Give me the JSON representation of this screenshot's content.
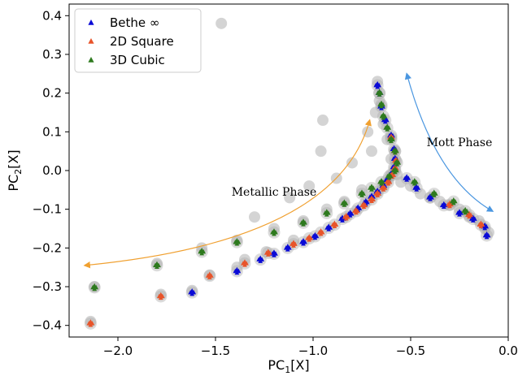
{
  "chart_data": {
    "type": "scatter",
    "xlabel": "PC1[X]",
    "ylabel": "PC2[X]",
    "xlim": [
      -2.25,
      0.0
    ],
    "ylim": [
      -0.43,
      0.43
    ],
    "xticks": [
      -2.0,
      -1.5,
      -1.0,
      -0.5,
      0.0
    ],
    "xtick_labels": [
      "−2.0",
      "−1.5",
      "−1.0",
      "−0.5",
      "0.0"
    ],
    "yticks": [
      -0.4,
      -0.3,
      -0.2,
      -0.1,
      0.0,
      0.1,
      0.2,
      0.3,
      0.4
    ],
    "ytick_labels": [
      "−0.4",
      "−0.3",
      "−0.2",
      "−0.1",
      "0.0",
      "0.1",
      "0.2",
      "0.3",
      "0.4"
    ],
    "grid": false,
    "legend_position": "top-left",
    "series": [
      {
        "name": "Bethe ∞",
        "color": "#0a0ad6",
        "marker": "triangle",
        "points": [
          [
            -1.62,
            -0.315
          ],
          [
            -1.39,
            -0.26
          ],
          [
            -1.27,
            -0.23
          ],
          [
            -1.2,
            -0.215
          ],
          [
            -1.13,
            -0.2
          ],
          [
            -1.05,
            -0.185
          ],
          [
            -0.99,
            -0.17
          ],
          [
            -0.92,
            -0.148
          ],
          [
            -0.85,
            -0.125
          ],
          [
            -0.81,
            -0.112
          ],
          [
            -0.77,
            -0.098
          ],
          [
            -0.73,
            -0.082
          ],
          [
            -0.7,
            -0.068
          ],
          [
            -0.67,
            -0.055
          ],
          [
            -0.64,
            -0.04
          ],
          [
            -0.62,
            -0.025
          ],
          [
            -0.6,
            -0.01
          ],
          [
            -0.585,
            0.008
          ],
          [
            -0.58,
            0.03
          ],
          [
            -0.585,
            0.055
          ],
          [
            -0.6,
            0.09
          ],
          [
            -0.63,
            0.13
          ],
          [
            -0.65,
            0.165
          ],
          [
            -0.66,
            0.2
          ],
          [
            -0.67,
            0.22
          ],
          [
            -0.52,
            -0.02
          ],
          [
            -0.47,
            -0.045
          ],
          [
            -0.4,
            -0.07
          ],
          [
            -0.33,
            -0.09
          ],
          [
            -0.25,
            -0.11
          ],
          [
            -0.18,
            -0.125
          ],
          [
            -0.12,
            -0.145
          ],
          [
            -0.11,
            -0.168
          ]
        ]
      },
      {
        "name": "2D Square",
        "color": "#e8542a",
        "marker": "triangle",
        "points": [
          [
            -2.14,
            -0.395
          ],
          [
            -1.78,
            -0.325
          ],
          [
            -1.53,
            -0.272
          ],
          [
            -1.35,
            -0.24
          ],
          [
            -1.23,
            -0.213
          ],
          [
            -1.1,
            -0.19
          ],
          [
            -1.02,
            -0.175
          ],
          [
            -0.96,
            -0.16
          ],
          [
            -0.89,
            -0.14
          ],
          [
            -0.83,
            -0.12
          ],
          [
            -0.78,
            -0.105
          ],
          [
            -0.74,
            -0.09
          ],
          [
            -0.7,
            -0.075
          ],
          [
            -0.67,
            -0.06
          ],
          [
            -0.64,
            -0.045
          ],
          [
            -0.615,
            -0.03
          ],
          [
            -0.595,
            -0.012
          ],
          [
            -0.58,
            0.005
          ],
          [
            -0.575,
            0.025
          ],
          [
            -0.58,
            0.05
          ],
          [
            -0.6,
            0.085
          ],
          [
            -0.3,
            -0.088
          ],
          [
            -0.2,
            -0.115
          ],
          [
            -0.14,
            -0.14
          ]
        ]
      },
      {
        "name": "3D Cubic",
        "color": "#2e7a1e",
        "marker": "triangle",
        "points": [
          [
            -2.12,
            -0.302
          ],
          [
            -1.8,
            -0.245
          ],
          [
            -1.57,
            -0.21
          ],
          [
            -1.39,
            -0.185
          ],
          [
            -1.2,
            -0.16
          ],
          [
            -1.05,
            -0.135
          ],
          [
            -0.93,
            -0.11
          ],
          [
            -0.84,
            -0.085
          ],
          [
            -0.75,
            -0.06
          ],
          [
            -0.7,
            -0.045
          ],
          [
            -0.65,
            -0.03
          ],
          [
            -0.61,
            -0.015
          ],
          [
            -0.58,
            0.0
          ],
          [
            -0.57,
            0.02
          ],
          [
            -0.58,
            0.05
          ],
          [
            -0.6,
            0.08
          ],
          [
            -0.62,
            0.11
          ],
          [
            -0.64,
            0.14
          ],
          [
            -0.65,
            0.17
          ],
          [
            -0.66,
            0.2
          ],
          [
            -0.48,
            -0.03
          ],
          [
            -0.38,
            -0.06
          ],
          [
            -0.28,
            -0.08
          ],
          [
            -0.22,
            -0.105
          ]
        ]
      }
    ],
    "background_cloud": {
      "color": "#b0b0b0",
      "points": [
        [
          -2.14,
          -0.39
        ],
        [
          -2.12,
          -0.3
        ],
        [
          -1.8,
          -0.24
        ],
        [
          -1.78,
          -0.32
        ],
        [
          -1.57,
          -0.2
        ],
        [
          -1.62,
          -0.31
        ],
        [
          -1.53,
          -0.27
        ],
        [
          -1.47,
          0.38
        ],
        [
          -1.39,
          -0.18
        ],
        [
          -1.35,
          -0.23
        ],
        [
          -1.39,
          -0.25
        ],
        [
          -1.3,
          -0.12
        ],
        [
          -1.2,
          -0.15
        ],
        [
          -1.24,
          -0.21
        ],
        [
          -1.12,
          -0.07
        ],
        [
          -1.05,
          -0.13
        ],
        [
          -1.1,
          -0.18
        ],
        [
          -1.02,
          -0.04
        ],
        [
          -0.95,
          0.13
        ],
        [
          -0.96,
          0.05
        ],
        [
          -0.93,
          -0.1
        ],
        [
          -0.88,
          -0.02
        ],
        [
          -0.84,
          -0.08
        ],
        [
          -0.8,
          0.02
        ],
        [
          -0.75,
          -0.05
        ],
        [
          -0.72,
          0.1
        ],
        [
          -0.7,
          0.05
        ],
        [
          -0.68,
          0.15
        ],
        [
          -0.67,
          0.23
        ],
        [
          -0.66,
          0.18
        ],
        [
          -0.64,
          0.12
        ],
        [
          -0.62,
          0.08
        ],
        [
          -0.6,
          0.03
        ],
        [
          -0.57,
          -0.01
        ],
        [
          -0.55,
          -0.03
        ],
        [
          -0.5,
          -0.04
        ],
        [
          -0.45,
          -0.06
        ],
        [
          -0.4,
          -0.07
        ],
        [
          -0.35,
          -0.08
        ],
        [
          -0.3,
          -0.09
        ],
        [
          -0.25,
          -0.1
        ],
        [
          -0.2,
          -0.12
        ],
        [
          -0.15,
          -0.13
        ],
        [
          -0.12,
          -0.15
        ],
        [
          -0.1,
          -0.16
        ]
      ]
    },
    "annotations": [
      {
        "text": "Metallic Phase",
        "x": -1.2,
        "y": -0.065
      },
      {
        "text": "Mott Phase",
        "x": -0.25,
        "y": 0.063
      }
    ],
    "arrows": [
      {
        "color": "#f0a030",
        "from": [
          -2.17,
          -0.245
        ],
        "to": [
          -0.71,
          0.13
        ],
        "bend": "up"
      },
      {
        "color": "#4a96e0",
        "from": [
          -0.52,
          0.25
        ],
        "to": [
          -0.08,
          -0.105
        ],
        "bend": "right"
      }
    ]
  }
}
